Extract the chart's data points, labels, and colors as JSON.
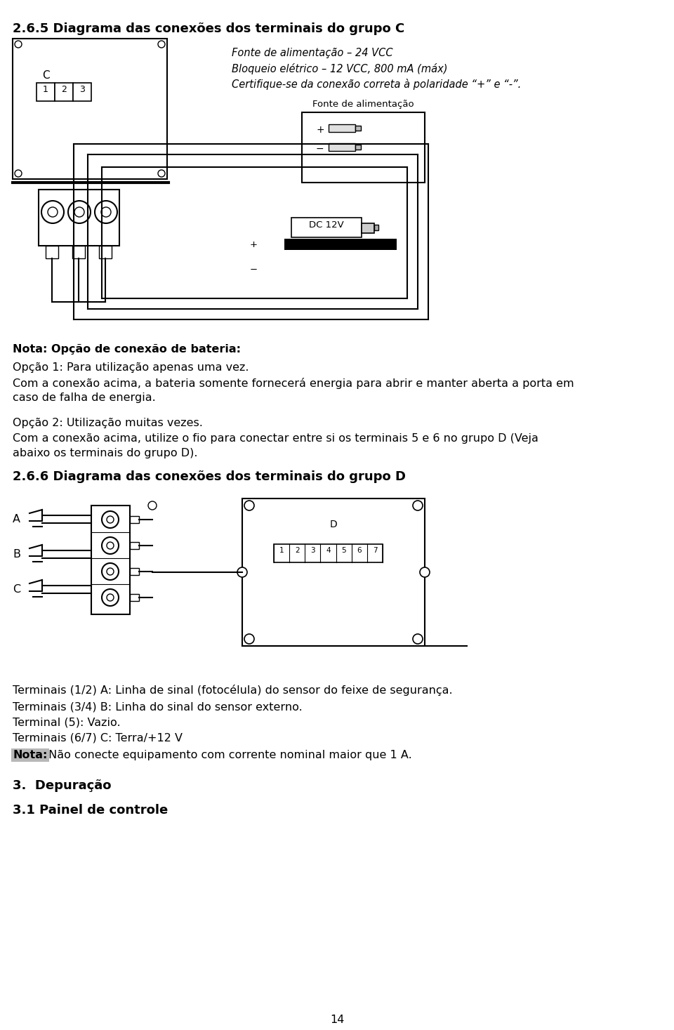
{
  "bg_color": "#ffffff",
  "text_color": "#000000",
  "page_number": "14",
  "section_title": "2.6.5 Diagrama das conexões dos terminais do grupo C",
  "italic_lines": [
    "Fonte de alimentação – 24 VCC",
    "Bloqueio elétrico – 12 VCC, 800 mA (máx)",
    "Certifique-se da conexão correta à polaridade “+” e “-”."
  ],
  "fonte_label": "Fonte de alimentação",
  "dc_label": "DC 12V",
  "nota_bold": "Nota: Opção de conexão de bateria:",
  "opcao1_line1": "Opção 1: Para utilização apenas uma vez.",
  "opcao1_line2a": "Com a conexão acima, a bateria somente fornecerá energia para abrir e manter aberta a porta em",
  "opcao1_line2b": "caso de falha de energia.",
  "opcao2_line1": "Opção 2: Utilização muitas vezes.",
  "opcao2_line2a": "Com a conexão acima, utilize o fio para conectar entre si os terminais 5 e 6 no grupo D (Veja",
  "opcao2_line2b": "abaixo os terminais do grupo D).",
  "section2_title": "2.6.6 Diagrama das conexões dos terminais do grupo D",
  "terminal_labels": [
    "A",
    "B",
    "C"
  ],
  "d_label": "D",
  "term_line1": "Terminais (1/2) A: Linha de sinal (fotocélula) do sensor do feixe de segurança.",
  "term_line2": "Terminais (3/4) B: Linha do sinal do sensor externo.",
  "term_line3": "Terminal (5): Vazio.",
  "term_line4": "Terminais (6/7) C: Terra/+12 V",
  "nota2_bold": "Nota:",
  "nota2_rest": " Não conecte equipamento com corrente nominal maior que 1 A.",
  "section3_title": "3.  Depuração",
  "section31_title": "3.1 Painel de controle",
  "c_label": "C",
  "terminal_numbers_c": [
    "1",
    "2",
    "3"
  ]
}
